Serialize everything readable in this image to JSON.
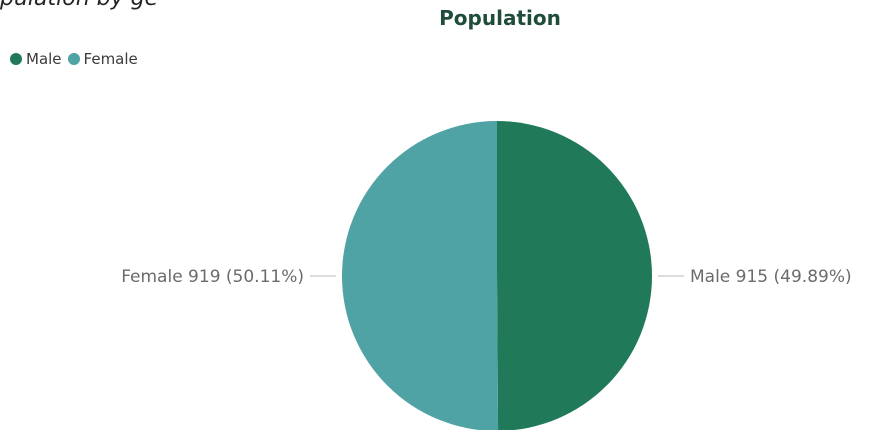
{
  "title_fragment": "pulation by ge",
  "chart_data": {
    "type": "pie",
    "title": "Population",
    "categories": [
      "Male",
      "Female"
    ],
    "values": [
      915,
      919
    ],
    "percentages": [
      "49.89%",
      "50.11%"
    ],
    "colors": [
      "#207a5a",
      "#50a3a4"
    ],
    "legend": {
      "position": "top-left",
      "entries": [
        "Male",
        "Female"
      ]
    },
    "data_labels": [
      "Male 915 (49.89%)",
      "Female 919 (50.11%)"
    ]
  }
}
